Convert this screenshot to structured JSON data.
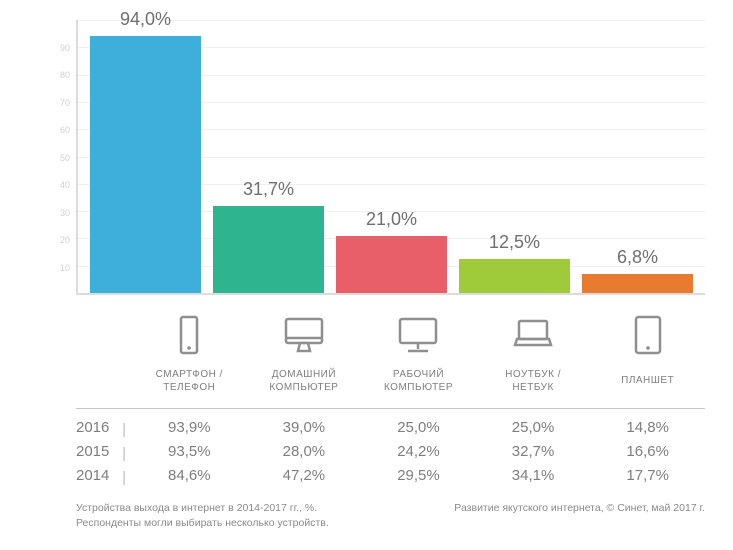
{
  "chart": {
    "type": "bar",
    "ylim": [
      0,
      100
    ],
    "yticks": [
      0,
      10,
      20,
      30,
      40,
      50,
      60,
      70,
      80,
      90,
      100
    ],
    "ytick_color": "#d0d0d0",
    "axis_color": "#dcdcdc",
    "grid_color": "#efefef",
    "background_color": "#ffffff",
    "bar_width_pct": 100,
    "label_fontsize": 18,
    "label_color": "#6f6f6f",
    "bars": [
      {
        "value": 94.0,
        "label": "94,0%",
        "color": "#3eafda"
      },
      {
        "value": 31.7,
        "label": "31,7%",
        "color": "#2fb490"
      },
      {
        "value": 21.0,
        "label": "21,0%",
        "color": "#e85f6a"
      },
      {
        "value": 12.5,
        "label": "12,5%",
        "color": "#9fcb3b"
      },
      {
        "value": 6.8,
        "label": "6,8%",
        "color": "#e87b2f"
      }
    ]
  },
  "categories": [
    {
      "icon": "smartphone",
      "label_line1": "СМАРТФОН /",
      "label_line2": "ТЕЛЕФОН"
    },
    {
      "icon": "desktop-imac",
      "label_line1": "ДОМАШНИЙ",
      "label_line2": "КОМПЬЮТЕР"
    },
    {
      "icon": "monitor",
      "label_line1": "РАБОЧИЙ",
      "label_line2": "КОМПЬЮТЕР"
    },
    {
      "icon": "laptop",
      "label_line1": "НОУТБУК /",
      "label_line2": "НЕТБУК"
    },
    {
      "icon": "tablet",
      "label_line1": "ПЛАНШЕТ",
      "label_line2": ""
    }
  ],
  "history": {
    "years": [
      "2016",
      "2015",
      "2014"
    ],
    "rows": [
      [
        "93,9%",
        "39,0%",
        "25,0%",
        "25,0%",
        "14,8%"
      ],
      [
        "93,5%",
        "28,0%",
        "24,2%",
        "32,7%",
        "16,6%"
      ],
      [
        "84,6%",
        "47,2%",
        "29,5%",
        "34,1%",
        "17,7%"
      ]
    ],
    "font_color": "#7e7e7e",
    "fontsize": 15
  },
  "icon_color": "#8f8f8f",
  "footer": {
    "left_line1": "Устройства выхода в интернет в 2014-2017 гг., %.",
    "left_line2": "Респонденты могли выбирать несколько устройств.",
    "right": "Развитие якутского интернета, © Синет, май 2017 г."
  }
}
